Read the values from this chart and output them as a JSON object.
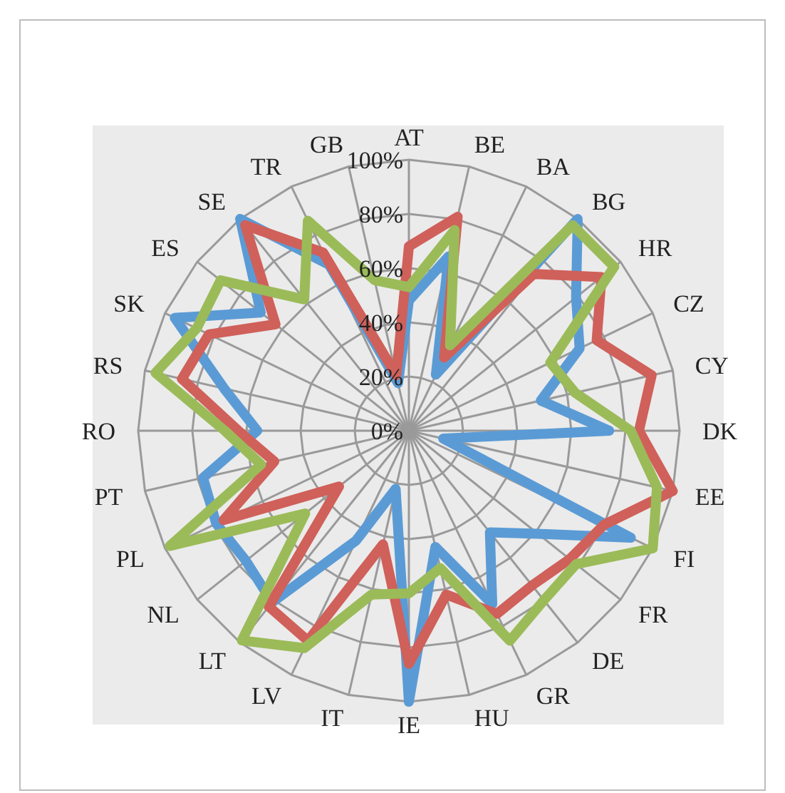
{
  "chart_data": {
    "type": "radar",
    "categories": [
      "AT",
      "BE",
      "BA",
      "BG",
      "HR",
      "CZ",
      "CY",
      "DK",
      "EE",
      "FI",
      "FR",
      "DE",
      "GR",
      "HU",
      "IE",
      "IT",
      "LV",
      "LT",
      "NL",
      "PL",
      "PT",
      "RO",
      "RS",
      "SK",
      "ES",
      "SE",
      "TR",
      "GB"
    ],
    "series": [
      {
        "color": "#5b9bd5",
        "values": [
          48,
          66,
          23,
          100,
          79,
          70,
          50,
          74,
          13,
          91,
          61,
          48,
          71,
          44,
          100,
          22,
          45,
          81,
          77,
          79,
          78,
          56,
          70,
          96,
          70,
          100,
          68,
          18
        ]
      },
      {
        "color": "#d0605a",
        "values": [
          68,
          81,
          30,
          74,
          91,
          77,
          92,
          85,
          100,
          80,
          76,
          73,
          75,
          62,
          86,
          43,
          86,
          83,
          33,
          76,
          51,
          63,
          86,
          82,
          63,
          97,
          73,
          21
        ]
      },
      {
        "color": "#9bbb59",
        "values": [
          53,
          76,
          35,
          97,
          97,
          58,
          63,
          82,
          94,
          100,
          79,
          80,
          86,
          52,
          60,
          62,
          89,
          99,
          49,
          98,
          56,
          68,
          96,
          87,
          89,
          62,
          86,
          57
        ]
      }
    ],
    "ylim": [
      0,
      100
    ],
    "yticks": [
      {
        "value": 0,
        "label": "0%"
      },
      {
        "value": 20,
        "label": "20%"
      },
      {
        "value": 40,
        "label": "40%"
      },
      {
        "value": 60,
        "label": "60%"
      },
      {
        "value": 80,
        "label": "80%"
      },
      {
        "value": 100,
        "label": "100%"
      }
    ],
    "grid": true
  }
}
